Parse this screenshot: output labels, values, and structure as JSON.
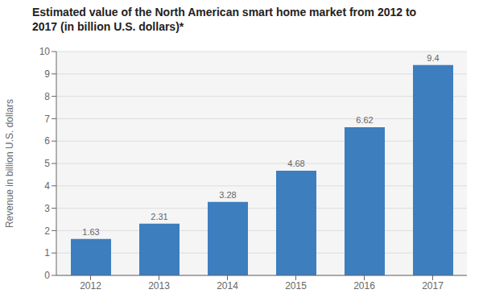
{
  "chart_data": {
    "type": "bar",
    "title": "Estimated value of the North American smart home market from 2012 to\n2017 (in billion U.S. dollars)*",
    "categories": [
      "2012",
      "2013",
      "2014",
      "2015",
      "2016",
      "2017"
    ],
    "values": [
      1.63,
      2.31,
      3.28,
      4.68,
      6.62,
      9.4
    ],
    "color": "#3d7ebf",
    "ylabel": "Revenue in billion U.S. dollars",
    "ylim": [
      0,
      10
    ],
    "yticks": [
      0,
      1,
      2,
      3,
      4,
      5,
      6,
      7,
      8,
      9,
      10
    ],
    "grid": true,
    "data_labels": true
  }
}
